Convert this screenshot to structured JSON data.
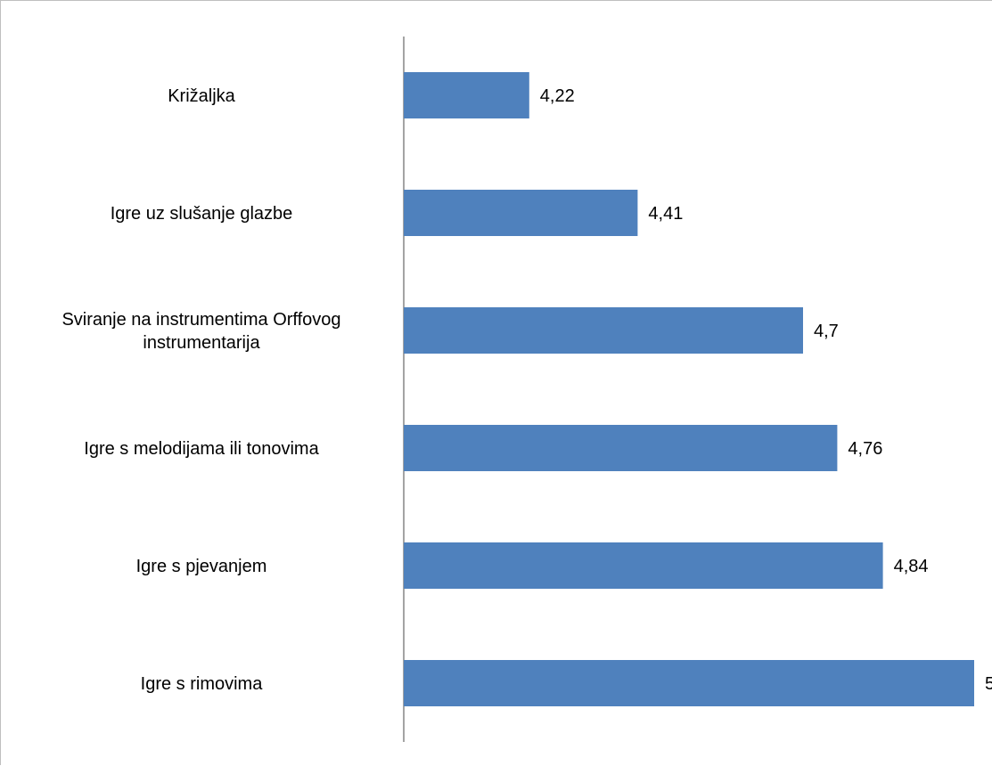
{
  "chart_data": {
    "type": "bar",
    "orientation": "horizontal",
    "categories": [
      "Križaljka",
      "Igre uz slušanje  glazbe",
      "Sviranje na instrumentima  Orffovog instrumentarija",
      "Igre s melodijama  ili tonovima",
      "Igre s pjevanjem",
      "Igre s rimovima"
    ],
    "category_lines": [
      [
        "Križaljka"
      ],
      [
        "Igre uz slušanje  glazbe"
      ],
      [
        "Sviranje na instrumentima  Orffovog",
        "instrumentarija"
      ],
      [
        "Igre s melodijama  ili tonovima"
      ],
      [
        "Igre s pjevanjem"
      ],
      [
        "Igre s rimovima"
      ]
    ],
    "values": [
      4.22,
      4.41,
      4.7,
      4.76,
      4.84,
      5
    ],
    "value_labels": [
      "4,22",
      "4,41",
      "4,7",
      "4,76",
      "4,84",
      "5"
    ],
    "xlim": [
      4,
      5
    ],
    "grid": false,
    "legend": "none",
    "colors": {
      "bar": "#4f81bd",
      "axis": "#868686",
      "frame": "#bfbfbf",
      "text": "#000000"
    }
  }
}
